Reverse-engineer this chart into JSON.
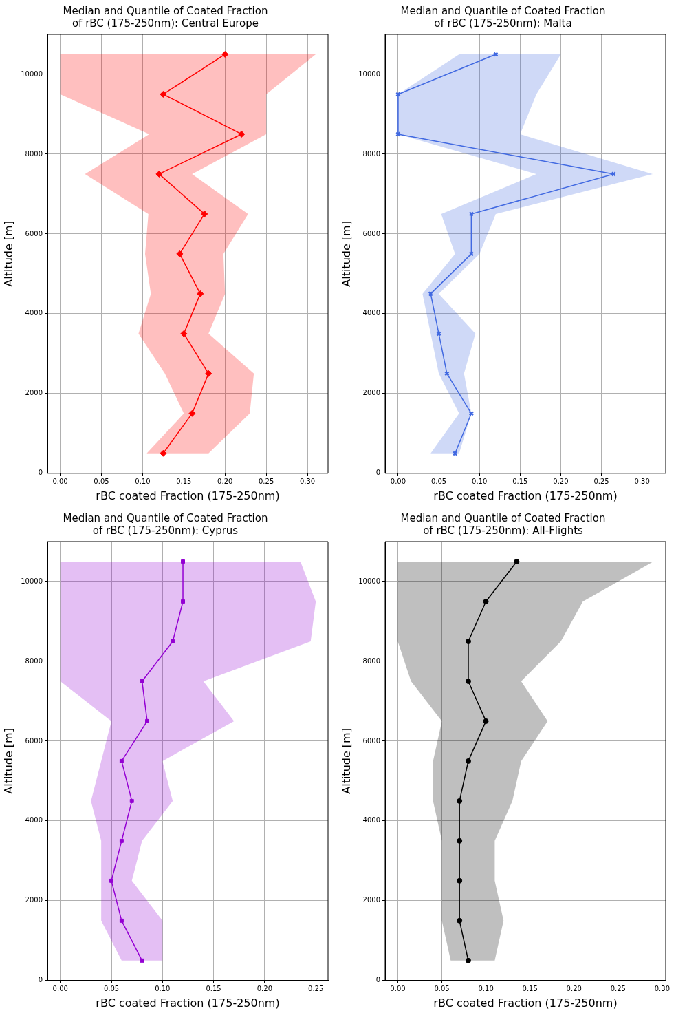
{
  "chart_data": [
    {
      "type": "line",
      "orientation": "horizontal",
      "title": "Median and Quantile of Coated Fraction\nof rBC (175-250nm): Central Europe",
      "xlabel": "rBC coated Fraction (175-250nm)",
      "ylabel": "Altitude [m]",
      "marker": "diamond",
      "grid": true,
      "x": [
        500,
        1500,
        2500,
        3500,
        4500,
        5500,
        6500,
        7500,
        8500,
        9500,
        10500
      ],
      "series": [
        {
          "color": "#ff0000",
          "values": [
            0.125,
            0.16,
            0.18,
            0.15,
            0.17,
            0.145,
            0.175,
            0.12,
            0.22,
            0.125,
            0.2
          ],
          "lower": [
            0.105,
            0.15,
            0.127,
            0.095,
            0.11,
            0.103,
            0.107,
            0.03,
            0.108,
            0.0,
            0.0
          ],
          "upper": [
            0.18,
            0.23,
            0.235,
            0.18,
            0.2,
            0.198,
            0.228,
            0.16,
            0.25,
            0.25,
            0.31
          ]
        }
      ],
      "xlim": [
        -0.0155,
        0.325
      ],
      "xticks": [
        {
          "value": 0,
          "label": "0.00"
        },
        0.05,
        {
          "value": 0.1,
          "label": "0.10"
        },
        0.15,
        {
          "value": 0.2,
          "label": "0.20"
        },
        0.25,
        {
          "value": 0.3,
          "label": "0.30"
        }
      ],
      "ylim": [
        0,
        11000
      ],
      "yticks": [
        0,
        2000,
        4000,
        6000,
        8000,
        10000
      ]
    },
    {
      "type": "line",
      "orientation": "horizontal",
      "title": "Median and Quantile of Coated Fraction\nof rBC (175-250nm): Malta",
      "xlabel": "rBC coated Fraction (175-250nm)",
      "ylabel": "Altitude [m]",
      "marker": "cross",
      "grid": true,
      "x": [
        500,
        1500,
        2500,
        3500,
        4500,
        5500,
        6500,
        7500,
        8500,
        9500,
        10500
      ],
      "series": [
        {
          "color": "#4169e1",
          "values": [
            0.07,
            0.09,
            0.06,
            0.05,
            0.04,
            0.09,
            0.09,
            0.265,
            0.0,
            0.0,
            0.12
          ],
          "lower": [
            0.04,
            0.075,
            0.05,
            0.04,
            0.03,
            0.07,
            0.053,
            0.17,
            0.0,
            0.0,
            0.075
          ],
          "upper": [
            0.075,
            0.09,
            0.081,
            0.095,
            0.05,
            0.1,
            0.12,
            0.313,
            0.15,
            0.17,
            0.2
          ]
        }
      ],
      "xlim": [
        -0.016,
        0.329
      ],
      "xticks": [
        {
          "value": 0,
          "label": "0.00"
        },
        0.05,
        {
          "value": 0.1,
          "label": "0.10"
        },
        0.15,
        {
          "value": 0.2,
          "label": "0.20"
        },
        0.25,
        {
          "value": 0.3,
          "label": "0.30"
        }
      ],
      "ylim": [
        0,
        11000
      ],
      "yticks": [
        0,
        2000,
        4000,
        6000,
        8000,
        10000
      ]
    },
    {
      "type": "line",
      "orientation": "horizontal",
      "title": "Median and Quantile of Coated Fraction\nof rBC (175-250nm): Cyprus",
      "xlabel": "rBC coated Fraction (175-250nm)",
      "ylabel": "Altitude [m]",
      "marker": "square",
      "grid": true,
      "x": [
        500,
        1500,
        2500,
        3500,
        4500,
        5500,
        6500,
        7500,
        8500,
        9500,
        10500
      ],
      "series": [
        {
          "color": "#9400d3",
          "values": [
            0.08,
            0.06,
            0.05,
            0.06,
            0.07,
            0.06,
            0.085,
            0.08,
            0.11,
            0.12,
            0.12
          ],
          "lower": [
            0.06,
            0.04,
            0.04,
            0.04,
            0.03,
            0.04,
            0.05,
            0.0,
            0.0,
            0.0,
            0.0
          ],
          "upper": [
            0.1,
            0.1,
            0.07,
            0.08,
            0.11,
            0.1,
            0.17,
            0.14,
            0.245,
            0.25,
            0.235
          ]
        }
      ],
      "xlim": [
        -0.0126,
        0.262
      ],
      "xticks": [
        {
          "value": 0,
          "label": "0.00"
        },
        0.05,
        {
          "value": 0.1,
          "label": "0.10"
        },
        0.15,
        {
          "value": 0.2,
          "label": "0.20"
        },
        0.25
      ],
      "ylim": [
        0,
        11000
      ],
      "yticks": [
        0,
        2000,
        4000,
        6000,
        8000,
        10000
      ]
    },
    {
      "type": "line",
      "orientation": "horizontal",
      "title": "Median and Quantile of Coated Fraction\nof rBC (175-250nm): All-Flights",
      "xlabel": "rBC coated Fraction (175-250nm)",
      "ylabel": "Altitude [m]",
      "marker": "circle",
      "grid": true,
      "x": [
        500,
        1500,
        2500,
        3500,
        4500,
        5500,
        6500,
        7500,
        8500,
        9500,
        10500
      ],
      "series": [
        {
          "color": "#000000",
          "values": [
            0.08,
            0.07,
            0.07,
            0.07,
            0.07,
            0.08,
            0.1,
            0.08,
            0.08,
            0.1,
            0.135
          ],
          "lower": [
            0.06,
            0.05,
            0.05,
            0.05,
            0.04,
            0.04,
            0.05,
            0.015,
            0.0,
            0.0,
            0.0
          ],
          "upper": [
            0.11,
            0.12,
            0.11,
            0.11,
            0.13,
            0.14,
            0.17,
            0.14,
            0.185,
            0.21,
            0.29
          ]
        }
      ],
      "xlim": [
        -0.0144,
        0.304
      ],
      "xticks": [
        {
          "value": 0,
          "label": "0.00"
        },
        0.05,
        {
          "value": 0.1,
          "label": "0.10"
        },
        0.15,
        {
          "value": 0.2,
          "label": "0.20"
        },
        0.25,
        {
          "value": 0.3,
          "label": "0.30"
        }
      ],
      "ylim": [
        0,
        11000
      ],
      "yticks": [
        0,
        2000,
        4000,
        6000,
        8000,
        10000
      ]
    }
  ]
}
